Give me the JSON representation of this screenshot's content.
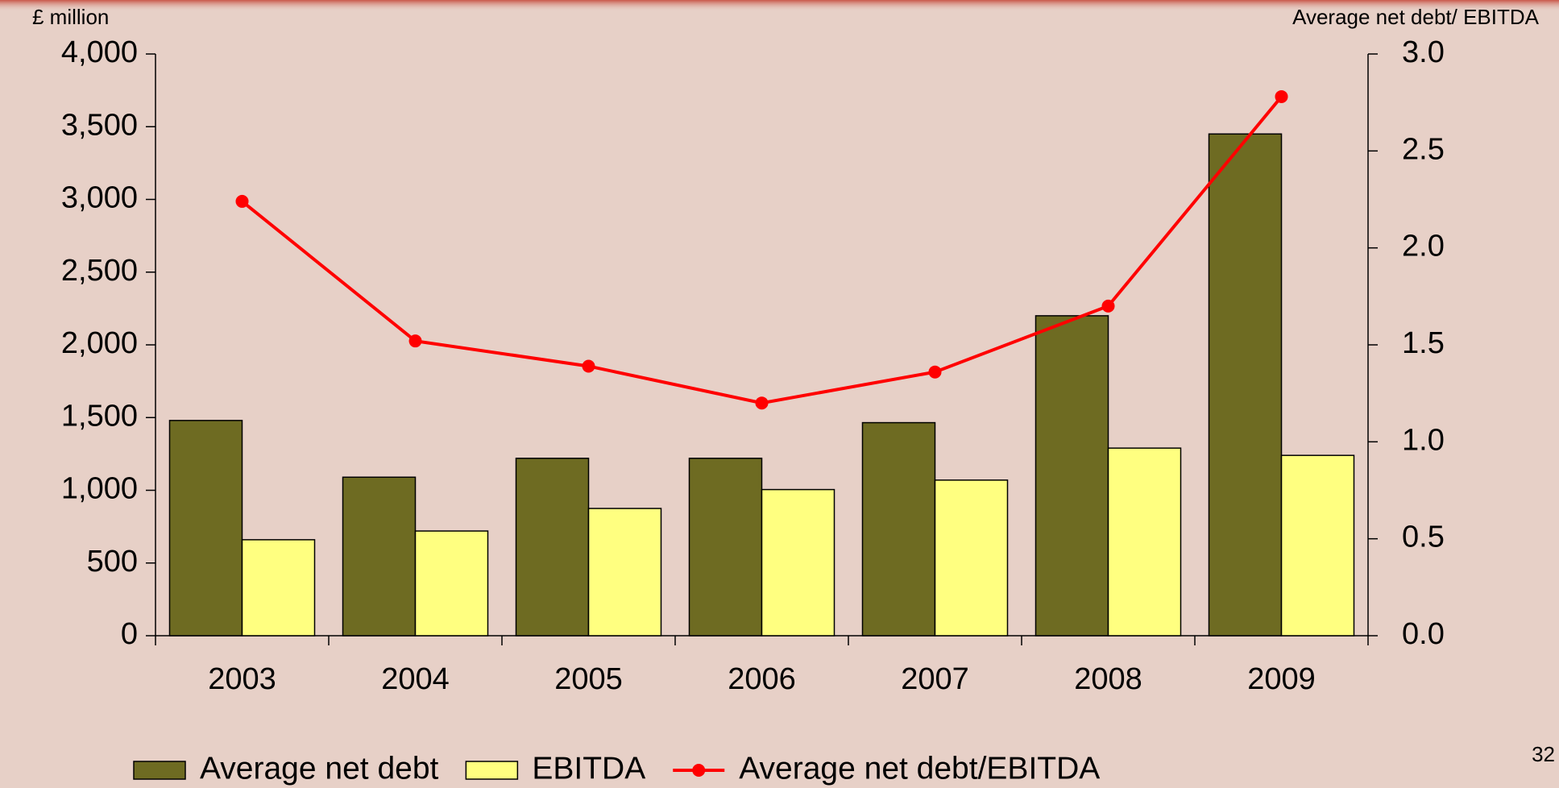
{
  "chart_data": {
    "type": "bar_line",
    "y_axis_label": "£ million",
    "y2_axis_label": "Average net debt/ EBITDA",
    "page_number": "32",
    "categories": [
      "2003",
      "2004",
      "2005",
      "2006",
      "2007",
      "2008",
      "2009"
    ],
    "series": [
      {
        "name": "Average net debt",
        "type": "bar",
        "color": "#6e6b22",
        "values": [
          1480,
          1090,
          1220,
          1220,
          1465,
          2200,
          3450
        ]
      },
      {
        "name": "EBITDA",
        "type": "bar",
        "color": "#ffff80",
        "values": [
          660,
          720,
          875,
          1005,
          1070,
          1290,
          1240
        ]
      },
      {
        "name": "Average net debt/EBITDA",
        "type": "line",
        "axis": "y2",
        "color": "#ff0000",
        "values": [
          2.24,
          1.52,
          1.39,
          1.2,
          1.36,
          1.7,
          2.78
        ]
      }
    ],
    "ylim": [
      0,
      4000
    ],
    "yticks": [
      0,
      500,
      {
        "value": 1000,
        "label": "1,000"
      },
      {
        "value": 1500,
        "label": "1,500"
      },
      {
        "value": 2000,
        "label": "2,000"
      },
      {
        "value": 2500,
        "label": "2,500"
      },
      {
        "value": 3000,
        "label": "3,000"
      },
      {
        "value": 3500,
        "label": "3,500"
      },
      {
        "value": 4000,
        "label": "4,000"
      }
    ],
    "y2lim": [
      0,
      3
    ],
    "y2ticks": [
      {
        "value": 0,
        "label": "0.0"
      },
      0.5,
      {
        "value": 1,
        "label": "1.0"
      },
      1.5,
      {
        "value": 2,
        "label": "2.0"
      },
      2.5,
      {
        "value": 3,
        "label": "3.0"
      }
    ],
    "legend": "bottom"
  }
}
